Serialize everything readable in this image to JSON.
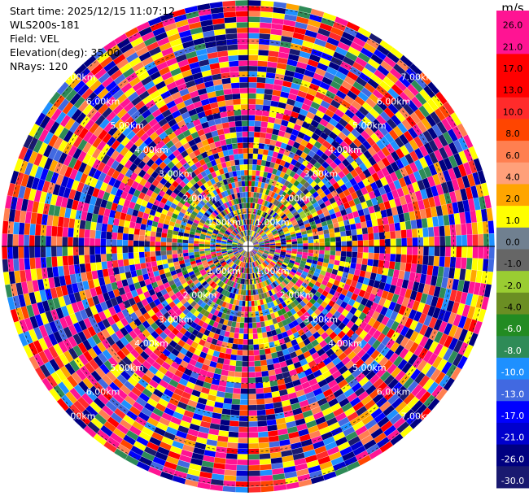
{
  "info": {
    "start_time": "Start time: 2025/12/15 11:07:12",
    "instrument": "WLS200s-181",
    "field": "Field: VEL",
    "elevation": "Elevation(deg): 35.00",
    "nrays": "NRays: 120"
  },
  "colorbar": {
    "unit": "m/s",
    "levels": [
      "26.0",
      "21.0",
      "17.0",
      "13.0",
      "10.0",
      "8.0",
      "6.0",
      "4.0",
      "2.0",
      "1.0",
      "0.0",
      "-1.0",
      "-2.0",
      "-4.0",
      "-6.0",
      "-8.0",
      "-10.0",
      "-13.0",
      "-17.0",
      "-21.0",
      "-26.0",
      "-30.0"
    ],
    "colors": [
      "#ff1493",
      "#ff1493",
      "#ff0000",
      "#ff0000",
      "#ff2b2b",
      "#ff4500",
      "#ff7f50",
      "#ffa07a",
      "#ffa500",
      "#ffff00",
      "#708090",
      "#666666",
      "#9acd32",
      "#6b8e23",
      "#228b22",
      "#2e8b57",
      "#1e90ff",
      "#4169e1",
      "#0000ff",
      "#0000cd",
      "#000080",
      "#191970"
    ]
  },
  "chart_data": {
    "type": "heatmap",
    "projection": "polar PPI",
    "field": "VEL",
    "elevation_deg": 35.0,
    "nrays": 120,
    "range_ring_labels": [
      "1.00km",
      "2.00km",
      "3.00km",
      "4.00km",
      "5.00km",
      "6.00km",
      "7.00km"
    ],
    "max_range_km": 7.2,
    "value_range": [
      -30.0,
      26.0
    ]
  }
}
